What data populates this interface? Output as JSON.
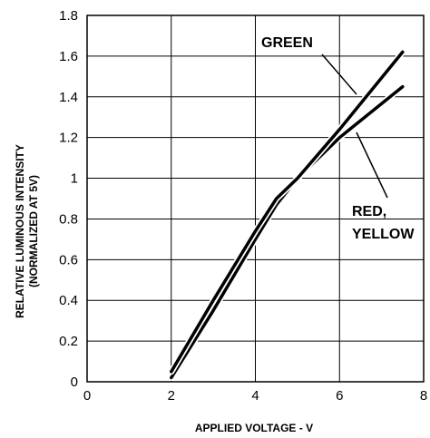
{
  "chart_data": {
    "type": "line",
    "title": "",
    "xlabel": "APPLIED VOLTAGE - V",
    "ylabel_line1": "RELATIVE LUMINOUS INTENSITY",
    "ylabel_line2": "(NORMALIZED AT 5V)",
    "xlim": [
      0,
      8
    ],
    "ylim": [
      0,
      1.8
    ],
    "x_ticks": [
      0,
      2,
      4,
      6,
      8
    ],
    "y_ticks": [
      0,
      0.2,
      0.4,
      0.6,
      0.8,
      1,
      1.2,
      1.4,
      1.6,
      1.8
    ],
    "x_tick_labels": [
      "0",
      "2",
      "4",
      "6",
      "8"
    ],
    "y_tick_labels": [
      "0",
      "0.2",
      "0.4",
      "0.6",
      "0.8",
      "1",
      "1.2",
      "1.4",
      "1.6",
      "1.8"
    ],
    "grid": true,
    "series": [
      {
        "name": "GREEN",
        "x": [
          2.0,
          3.0,
          4.0,
          4.5,
          5.0,
          6.0,
          7.5
        ],
        "y": [
          0.02,
          0.35,
          0.7,
          0.87,
          1.0,
          1.2,
          1.45
        ]
      },
      {
        "name": "RED, YELLOW",
        "x": [
          2.0,
          3.0,
          4.0,
          4.5,
          5.0,
          6.0,
          7.5
        ],
        "y": [
          0.05,
          0.4,
          0.74,
          0.9,
          1.0,
          1.24,
          1.62
        ]
      }
    ],
    "annotations": [
      {
        "text": "GREEN"
      },
      {
        "text_line1": "RED,",
        "text_line2": "YELLOW"
      }
    ]
  }
}
